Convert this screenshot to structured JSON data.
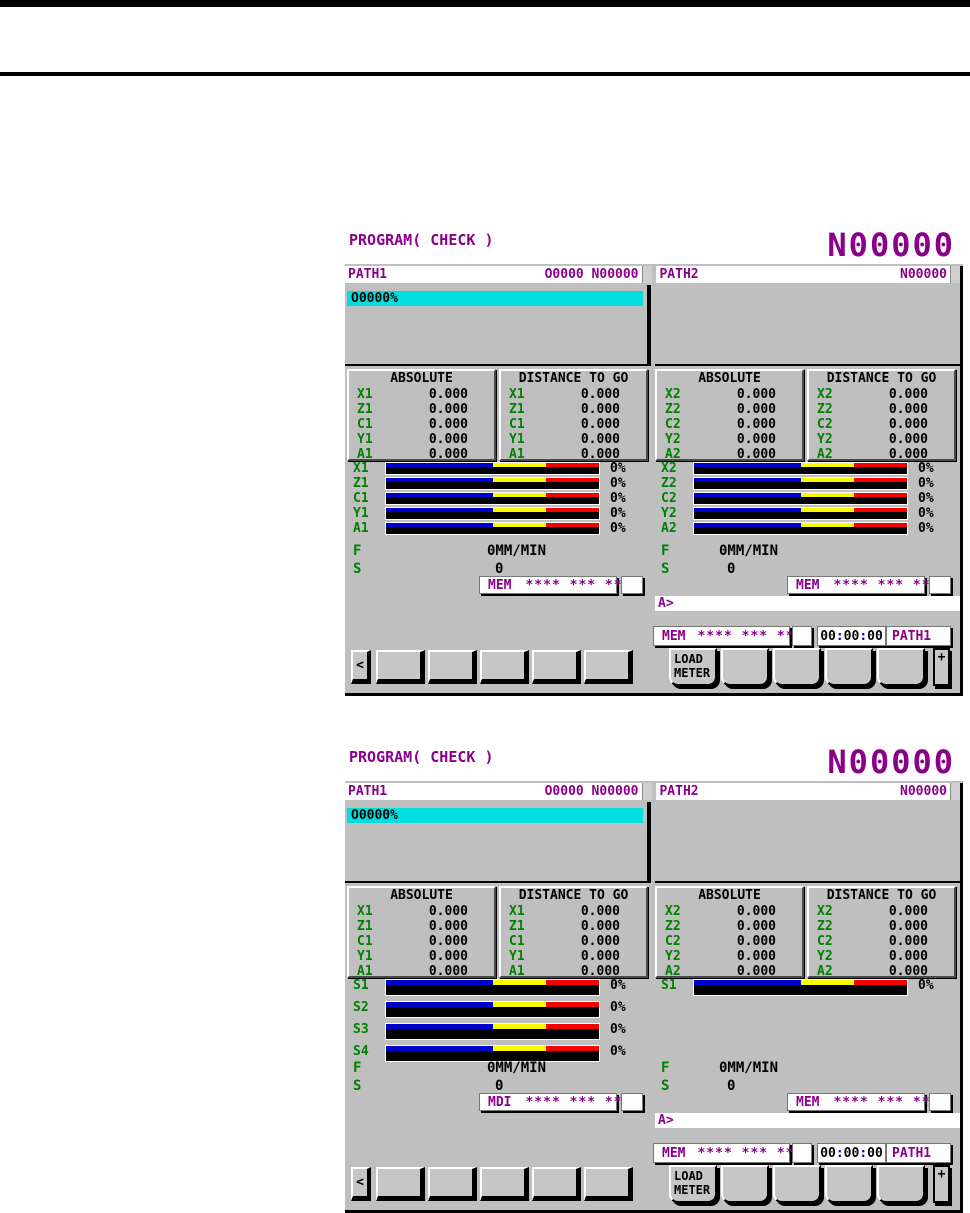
{
  "colors": {
    "accent_purple": "#8B008B",
    "axis_green": "#008000",
    "highlight_cyan": "#00DEDE",
    "meter_blue": "#0000CC",
    "meter_yellow": "#F8FC00",
    "meter_red": "#F80000",
    "panel_silver": "#BFBFBF"
  },
  "screens": [
    {
      "title": "PROGRAM( CHECK )",
      "sequence_big": "N00000",
      "paths": [
        {
          "label": "PATH1",
          "title_right": "O0000 N00000",
          "buffer_line": "O0000%",
          "pos_boxes": [
            {
              "title": "ABSOLUTE",
              "rows": [
                {
                  "axis": "X1",
                  "value": "0.000"
                },
                {
                  "axis": "Z1",
                  "value": "0.000"
                },
                {
                  "axis": "C1",
                  "value": "0.000"
                },
                {
                  "axis": "Y1",
                  "value": "0.000"
                },
                {
                  "axis": "A1",
                  "value": "0.000"
                }
              ]
            },
            {
              "title": "DISTANCE TO GO",
              "rows": [
                {
                  "axis": "X1",
                  "value": "0.000"
                },
                {
                  "axis": "Z1",
                  "value": "0.000"
                },
                {
                  "axis": "C1",
                  "value": "0.000"
                },
                {
                  "axis": "Y1",
                  "value": "0.000"
                },
                {
                  "axis": "A1",
                  "value": "0.000"
                }
              ]
            }
          ],
          "meters": {
            "style": "thin",
            "rows": [
              {
                "label": "X1",
                "pct": "0%"
              },
              {
                "label": "Z1",
                "pct": "0%"
              },
              {
                "label": "C1",
                "pct": "0%"
              },
              {
                "label": "Y1",
                "pct": "0%"
              },
              {
                "label": "A1",
                "pct": "0%"
              }
            ]
          },
          "feed_label": "F",
          "feed_value": "0MM/MIN",
          "spindle_label": "S",
          "spindle_value": "0",
          "mode": {
            "label": "MEM",
            "stars": "**** *** ***"
          },
          "prompt": null,
          "status": null
        },
        {
          "label": "PATH2",
          "title_right": "N00000",
          "buffer_line": null,
          "pos_boxes": [
            {
              "title": "ABSOLUTE",
              "rows": [
                {
                  "axis": "X2",
                  "value": "0.000"
                },
                {
                  "axis": "Z2",
                  "value": "0.000"
                },
                {
                  "axis": "C2",
                  "value": "0.000"
                },
                {
                  "axis": "Y2",
                  "value": "0.000"
                },
                {
                  "axis": "A2",
                  "value": "0.000"
                }
              ]
            },
            {
              "title": "DISTANCE TO GO",
              "rows": [
                {
                  "axis": "X2",
                  "value": "0.000"
                },
                {
                  "axis": "Z2",
                  "value": "0.000"
                },
                {
                  "axis": "C2",
                  "value": "0.000"
                },
                {
                  "axis": "Y2",
                  "value": "0.000"
                },
                {
                  "axis": "A2",
                  "value": "0.000"
                }
              ]
            }
          ],
          "meters": {
            "style": "thin",
            "rows": [
              {
                "label": "X2",
                "pct": "0%"
              },
              {
                "label": "Z2",
                "pct": "0%"
              },
              {
                "label": "C2",
                "pct": "0%"
              },
              {
                "label": "Y2",
                "pct": "0%"
              },
              {
                "label": "A2",
                "pct": "0%"
              }
            ]
          },
          "feed_label": "F",
          "feed_value": "0MM/MIN",
          "spindle_label": "S",
          "spindle_value": "0",
          "mode": {
            "label": "MEM",
            "stars": "**** *** ***"
          },
          "prompt": "A>",
          "status": {
            "mode": "MEM",
            "stars": "**** *** ***",
            "time": [
              "00",
              "00",
              "00"
            ],
            "path": "PATH1"
          }
        }
      ],
      "softkeys": {
        "back": "<",
        "left_keys": [
          "",
          "",
          "",
          "",
          ""
        ],
        "right_keys": [
          [
            "LOAD",
            "METER"
          ],
          [
            "",
            ""
          ],
          [
            "",
            ""
          ],
          [
            "",
            ""
          ],
          [
            "",
            ""
          ]
        ],
        "more": "+"
      }
    },
    {
      "title": "PROGRAM( CHECK )",
      "sequence_big": "N00000",
      "paths": [
        {
          "label": "PATH1",
          "title_right": "O0000 N00000",
          "buffer_line": "O0000%",
          "pos_boxes": [
            {
              "title": "ABSOLUTE",
              "rows": [
                {
                  "axis": "X1",
                  "value": "0.000"
                },
                {
                  "axis": "Z1",
                  "value": "0.000"
                },
                {
                  "axis": "C1",
                  "value": "0.000"
                },
                {
                  "axis": "Y1",
                  "value": "0.000"
                },
                {
                  "axis": "A1",
                  "value": "0.000"
                }
              ]
            },
            {
              "title": "DISTANCE TO GO",
              "rows": [
                {
                  "axis": "X1",
                  "value": "0.000"
                },
                {
                  "axis": "Z1",
                  "value": "0.000"
                },
                {
                  "axis": "C1",
                  "value": "0.000"
                },
                {
                  "axis": "Y1",
                  "value": "0.000"
                },
                {
                  "axis": "A1",
                  "value": "0.000"
                }
              ]
            }
          ],
          "meters": {
            "style": "thick",
            "rows": [
              {
                "label": "S1",
                "pct": "0%"
              },
              {
                "label": "S2",
                "pct": "0%"
              },
              {
                "label": "S3",
                "pct": "0%"
              },
              {
                "label": "S4",
                "pct": "0%"
              }
            ]
          },
          "feed_label": "F",
          "feed_value": "0MM/MIN",
          "spindle_label": "S",
          "spindle_value": "0",
          "mode": {
            "label": "MDI",
            "stars": "**** *** ***"
          },
          "prompt": null,
          "status": null
        },
        {
          "label": "PATH2",
          "title_right": "N00000",
          "buffer_line": null,
          "pos_boxes": [
            {
              "title": "ABSOLUTE",
              "rows": [
                {
                  "axis": "X2",
                  "value": "0.000"
                },
                {
                  "axis": "Z2",
                  "value": "0.000"
                },
                {
                  "axis": "C2",
                  "value": "0.000"
                },
                {
                  "axis": "Y2",
                  "value": "0.000"
                },
                {
                  "axis": "A2",
                  "value": "0.000"
                }
              ]
            },
            {
              "title": "DISTANCE TO GO",
              "rows": [
                {
                  "axis": "X2",
                  "value": "0.000"
                },
                {
                  "axis": "Z2",
                  "value": "0.000"
                },
                {
                  "axis": "C2",
                  "value": "0.000"
                },
                {
                  "axis": "Y2",
                  "value": "0.000"
                },
                {
                  "axis": "A2",
                  "value": "0.000"
                }
              ]
            }
          ],
          "meters": {
            "style": "thick",
            "rows": [
              {
                "label": "S1",
                "pct": "0%"
              }
            ]
          },
          "feed_label": "F",
          "feed_value": "0MM/MIN",
          "spindle_label": "S",
          "spindle_value": "0",
          "mode": {
            "label": "MEM",
            "stars": "**** *** ***"
          },
          "prompt": "A>",
          "status": {
            "mode": "MEM",
            "stars": "**** *** ***",
            "time": [
              "00",
              "00",
              "00"
            ],
            "path": "PATH1"
          }
        }
      ],
      "softkeys": {
        "back": "<",
        "left_keys": [
          "",
          "",
          "",
          "",
          ""
        ],
        "right_keys": [
          [
            "LOAD",
            "METER"
          ],
          [
            "",
            ""
          ],
          [
            "",
            ""
          ],
          [
            "",
            ""
          ],
          [
            "",
            ""
          ]
        ],
        "more": "+"
      }
    }
  ]
}
